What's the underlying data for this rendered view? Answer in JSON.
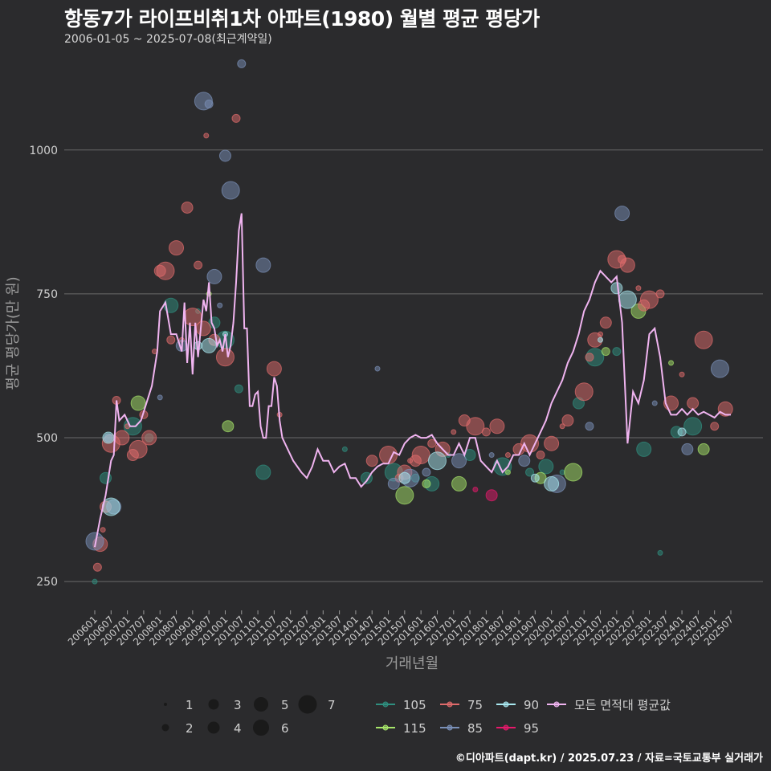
{
  "header": {
    "title": "항동7가 라이프비취1차 아파트(1980) 월별 평균 평당가",
    "subtitle": "2006-01-05 ~ 2025-07-08(최근계약일)"
  },
  "footer": {
    "credit": "©디아파트(dapt.kr) / 2025.07.23 / 자료=국토교통부 실거래가"
  },
  "colors": {
    "background": "#2b2b2d",
    "grid": "#6a6a6a",
    "line": "#f0b4f0",
    "s105": "#2f8f7f",
    "s115": "#a7e66a",
    "s75": "#e06b6b",
    "s85": "#7a90b8",
    "s90": "#a8e8f0",
    "s95": "#e6196b"
  },
  "chart_data": {
    "type": "scatter+line",
    "title": "항동7가 라이프비취1차 아파트(1980) 월별 평균 평당가",
    "xlabel": "거래년월",
    "ylabel": "평균 평당가(만 원)",
    "ylim": [
      200,
      1170
    ],
    "yticks": [
      250,
      500,
      750,
      1000
    ],
    "x_start": "2006-01",
    "x_end": "2025-07",
    "xtick_labels": [
      "200601",
      "200607",
      "200701",
      "200707",
      "200801",
      "200807",
      "200901",
      "200907",
      "201001",
      "201007",
      "201101",
      "201107",
      "201201",
      "201207",
      "201301",
      "201307",
      "201401",
      "201407",
      "201501",
      "201507",
      "201601",
      "201607",
      "201701",
      "201707",
      "201801",
      "201807",
      "201901",
      "201907",
      "202001",
      "202007",
      "202101",
      "202107",
      "202201",
      "202207",
      "202301",
      "202307",
      "202401",
      "202407",
      "202501",
      "202507"
    ],
    "average_line": {
      "name": "모든 면적대 평균값",
      "points": [
        [
          "2006-01",
          310
        ],
        [
          "2006-03",
          360
        ],
        [
          "2006-05",
          400
        ],
        [
          "2006-07",
          460
        ],
        [
          "2006-08",
          470
        ],
        [
          "2006-09",
          565
        ],
        [
          "2006-10",
          530
        ],
        [
          "2006-12",
          540
        ],
        [
          "2007-02",
          520
        ],
        [
          "2007-04",
          520
        ],
        [
          "2007-06",
          530
        ],
        [
          "2007-08",
          560
        ],
        [
          "2007-10",
          590
        ],
        [
          "2007-12",
          650
        ],
        [
          "2008-01",
          720
        ],
        [
          "2008-03",
          735
        ],
        [
          "2008-05",
          680
        ],
        [
          "2008-07",
          680
        ],
        [
          "2008-09",
          650
        ],
        [
          "2008-10",
          735
        ],
        [
          "2008-11",
          630
        ],
        [
          "2008-12",
          700
        ],
        [
          "2009-01",
          610
        ],
        [
          "2009-02",
          700
        ],
        [
          "2009-03",
          640
        ],
        [
          "2009-04",
          690
        ],
        [
          "2009-05",
          740
        ],
        [
          "2009-06",
          720
        ],
        [
          "2009-07",
          770
        ],
        [
          "2009-08",
          700
        ],
        [
          "2009-09",
          690
        ],
        [
          "2009-10",
          660
        ],
        [
          "2009-11",
          670
        ],
        [
          "2009-12",
          650
        ],
        [
          "2010-01",
          680
        ],
        [
          "2010-02",
          640
        ],
        [
          "2010-03",
          660
        ],
        [
          "2010-04",
          700
        ],
        [
          "2010-05",
          770
        ],
        [
          "2010-06",
          860
        ],
        [
          "2010-07",
          890
        ],
        [
          "2010-08",
          690
        ],
        [
          "2010-09",
          690
        ],
        [
          "2010-10",
          555
        ],
        [
          "2010-11",
          555
        ],
        [
          "2010-12",
          575
        ],
        [
          "2011-01",
          580
        ],
        [
          "2011-02",
          520
        ],
        [
          "2011-03",
          500
        ],
        [
          "2011-04",
          500
        ],
        [
          "2011-05",
          555
        ],
        [
          "2011-06",
          555
        ],
        [
          "2011-07",
          605
        ],
        [
          "2011-08",
          590
        ],
        [
          "2011-09",
          530
        ],
        [
          "2011-10",
          500
        ],
        [
          "2011-12",
          480
        ],
        [
          "2012-02",
          460
        ],
        [
          "2012-05",
          440
        ],
        [
          "2012-07",
          430
        ],
        [
          "2012-09",
          450
        ],
        [
          "2012-11",
          480
        ],
        [
          "2013-01",
          460
        ],
        [
          "2013-03",
          460
        ],
        [
          "2013-05",
          440
        ],
        [
          "2013-07",
          450
        ],
        [
          "2013-09",
          455
        ],
        [
          "2013-11",
          430
        ],
        [
          "2014-01",
          430
        ],
        [
          "2014-03",
          415
        ],
        [
          "2014-05",
          425
        ],
        [
          "2014-07",
          440
        ],
        [
          "2014-09",
          450
        ],
        [
          "2014-11",
          455
        ],
        [
          "2015-01",
          455
        ],
        [
          "2015-03",
          475
        ],
        [
          "2015-05",
          470
        ],
        [
          "2015-07",
          490
        ],
        [
          "2015-09",
          500
        ],
        [
          "2015-11",
          505
        ],
        [
          "2016-01",
          500
        ],
        [
          "2016-03",
          500
        ],
        [
          "2016-05",
          505
        ],
        [
          "2016-07",
          490
        ],
        [
          "2016-09",
          480
        ],
        [
          "2016-11",
          470
        ],
        [
          "2017-01",
          470
        ],
        [
          "2017-03",
          490
        ],
        [
          "2017-05",
          470
        ],
        [
          "2017-07",
          500
        ],
        [
          "2017-09",
          500
        ],
        [
          "2017-11",
          460
        ],
        [
          "2018-01",
          450
        ],
        [
          "2018-03",
          440
        ],
        [
          "2018-05",
          460
        ],
        [
          "2018-07",
          440
        ],
        [
          "2018-09",
          450
        ],
        [
          "2018-11",
          470
        ],
        [
          "2019-01",
          470
        ],
        [
          "2019-03",
          490
        ],
        [
          "2019-05",
          470
        ],
        [
          "2019-07",
          490
        ],
        [
          "2019-09",
          510
        ],
        [
          "2019-11",
          530
        ],
        [
          "2020-01",
          560
        ],
        [
          "2020-03",
          580
        ],
        [
          "2020-05",
          600
        ],
        [
          "2020-07",
          630
        ],
        [
          "2020-09",
          650
        ],
        [
          "2020-11",
          680
        ],
        [
          "2021-01",
          720
        ],
        [
          "2021-03",
          740
        ],
        [
          "2021-05",
          770
        ],
        [
          "2021-07",
          790
        ],
        [
          "2021-09",
          780
        ],
        [
          "2021-11",
          770
        ],
        [
          "2022-01",
          780
        ],
        [
          "2022-03",
          700
        ],
        [
          "2022-05",
          490
        ],
        [
          "2022-07",
          580
        ],
        [
          "2022-09",
          560
        ],
        [
          "2022-11",
          600
        ],
        [
          "2023-01",
          680
        ],
        [
          "2023-03",
          690
        ],
        [
          "2023-05",
          640
        ],
        [
          "2023-07",
          560
        ],
        [
          "2023-09",
          540
        ],
        [
          "2023-11",
          540
        ],
        [
          "2024-01",
          550
        ],
        [
          "2024-03",
          540
        ],
        [
          "2024-05",
          550
        ],
        [
          "2024-07",
          540
        ],
        [
          "2024-09",
          545
        ],
        [
          "2024-11",
          540
        ],
        [
          "2025-01",
          535
        ],
        [
          "2025-03",
          545
        ],
        [
          "2025-05",
          540
        ],
        [
          "2025-07",
          540
        ]
      ]
    },
    "series": [
      {
        "name": "105",
        "color": "#2f8f7f",
        "points": [
          [
            "2006-01",
            250
          ],
          [
            "2006-05",
            430
          ],
          [
            "2007-03",
            520
          ],
          [
            "2007-09",
            500
          ],
          [
            "2008-05",
            730
          ],
          [
            "2009-03",
            720
          ],
          [
            "2009-09",
            700
          ],
          [
            "2010-01",
            670
          ],
          [
            "2010-06",
            585
          ],
          [
            "2011-03",
            440
          ],
          [
            "2013-09",
            480
          ],
          [
            "2014-05",
            430
          ],
          [
            "2015-03",
            440
          ],
          [
            "2015-11",
            430
          ],
          [
            "2016-05",
            420
          ],
          [
            "2016-11",
            470
          ],
          [
            "2017-07",
            470
          ],
          [
            "2018-07",
            450
          ],
          [
            "2019-05",
            440
          ],
          [
            "2019-11",
            450
          ],
          [
            "2020-05",
            440
          ],
          [
            "2020-11",
            560
          ],
          [
            "2021-05",
            640
          ],
          [
            "2022-01",
            650
          ],
          [
            "2022-11",
            480
          ],
          [
            "2023-05",
            300
          ],
          [
            "2023-11",
            510
          ],
          [
            "2024-05",
            520
          ]
        ]
      },
      {
        "name": "115",
        "color": "#a7e66a",
        "points": [
          [
            "2007-05",
            560
          ],
          [
            "2009-07",
            750
          ],
          [
            "2010-02",
            520
          ],
          [
            "2015-07",
            400
          ],
          [
            "2016-03",
            420
          ],
          [
            "2017-03",
            420
          ],
          [
            "2018-09",
            440
          ],
          [
            "2019-09",
            430
          ],
          [
            "2020-09",
            440
          ],
          [
            "2021-09",
            650
          ],
          [
            "2022-09",
            720
          ],
          [
            "2023-09",
            630
          ],
          [
            "2024-09",
            480
          ]
        ]
      },
      {
        "name": "75",
        "color": "#e06b6b",
        "points": [
          [
            "2006-02",
            275
          ],
          [
            "2006-03",
            315
          ],
          [
            "2006-04",
            340
          ],
          [
            "2006-05",
            380
          ],
          [
            "2006-07",
            490
          ],
          [
            "2006-09",
            565
          ],
          [
            "2006-11",
            500
          ],
          [
            "2007-01",
            520
          ],
          [
            "2007-03",
            470
          ],
          [
            "2007-05",
            480
          ],
          [
            "2007-07",
            540
          ],
          [
            "2007-09",
            500
          ],
          [
            "2007-11",
            650
          ],
          [
            "2008-01",
            790
          ],
          [
            "2008-03",
            790
          ],
          [
            "2008-05",
            670
          ],
          [
            "2008-07",
            830
          ],
          [
            "2008-09",
            670
          ],
          [
            "2008-11",
            900
          ],
          [
            "2009-01",
            710
          ],
          [
            "2009-03",
            800
          ],
          [
            "2009-05",
            690
          ],
          [
            "2009-06",
            1025
          ],
          [
            "2009-09",
            670
          ],
          [
            "2010-01",
            640
          ],
          [
            "2010-05",
            1055
          ],
          [
            "2011-07",
            620
          ],
          [
            "2011-09",
            540
          ],
          [
            "2014-07",
            460
          ],
          [
            "2015-01",
            470
          ],
          [
            "2015-05",
            430
          ],
          [
            "2015-07",
            440
          ],
          [
            "2015-09",
            460
          ],
          [
            "2015-11",
            460
          ],
          [
            "2016-01",
            470
          ],
          [
            "2016-05",
            490
          ],
          [
            "2016-09",
            480
          ],
          [
            "2017-01",
            510
          ],
          [
            "2017-05",
            530
          ],
          [
            "2017-09",
            520
          ],
          [
            "2018-01",
            510
          ],
          [
            "2018-05",
            520
          ],
          [
            "2018-09",
            470
          ],
          [
            "2019-01",
            480
          ],
          [
            "2019-05",
            490
          ],
          [
            "2019-09",
            470
          ],
          [
            "2020-01",
            490
          ],
          [
            "2020-05",
            520
          ],
          [
            "2020-07",
            530
          ],
          [
            "2021-01",
            580
          ],
          [
            "2021-03",
            640
          ],
          [
            "2021-05",
            670
          ],
          [
            "2021-07",
            680
          ],
          [
            "2021-09",
            700
          ],
          [
            "2022-01",
            810
          ],
          [
            "2022-03",
            810
          ],
          [
            "2022-05",
            800
          ],
          [
            "2022-09",
            760
          ],
          [
            "2022-11",
            730
          ],
          [
            "2023-01",
            740
          ],
          [
            "2023-05",
            750
          ],
          [
            "2023-09",
            560
          ],
          [
            "2024-01",
            610
          ],
          [
            "2024-05",
            560
          ],
          [
            "2024-09",
            670
          ],
          [
            "2025-01",
            520
          ],
          [
            "2025-05",
            550
          ]
        ]
      },
      {
        "name": "85",
        "color": "#7a90b8",
        "points": [
          [
            "2006-01",
            320
          ],
          [
            "2006-06",
            500
          ],
          [
            "2006-08",
            380
          ],
          [
            "2008-01",
            570
          ],
          [
            "2008-09",
            660
          ],
          [
            "2009-05",
            1085
          ],
          [
            "2009-07",
            1080
          ],
          [
            "2009-09",
            780
          ],
          [
            "2009-11",
            730
          ],
          [
            "2010-01",
            990
          ],
          [
            "2010-03",
            930
          ],
          [
            "2010-07",
            1150
          ],
          [
            "2011-03",
            800
          ],
          [
            "2014-09",
            620
          ],
          [
            "2015-03",
            420
          ],
          [
            "2015-09",
            430
          ],
          [
            "2016-03",
            440
          ],
          [
            "2017-03",
            460
          ],
          [
            "2018-03",
            470
          ],
          [
            "2019-03",
            460
          ],
          [
            "2020-03",
            420
          ],
          [
            "2021-03",
            520
          ],
          [
            "2022-03",
            890
          ],
          [
            "2023-03",
            560
          ],
          [
            "2024-03",
            480
          ],
          [
            "2025-03",
            620
          ]
        ]
      },
      {
        "name": "90",
        "color": "#a8e8f0",
        "points": [
          [
            "2006-06",
            500
          ],
          [
            "2006-07",
            380
          ],
          [
            "2009-03",
            660
          ],
          [
            "2009-07",
            660
          ],
          [
            "2010-01",
            680
          ],
          [
            "2015-07",
            430
          ],
          [
            "2016-07",
            460
          ],
          [
            "2019-07",
            430
          ],
          [
            "2020-01",
            420
          ],
          [
            "2021-07",
            670
          ],
          [
            "2022-01",
            760
          ],
          [
            "2022-05",
            740
          ],
          [
            "2024-01",
            510
          ]
        ]
      },
      {
        "name": "95",
        "color": "#e6196b",
        "points": [
          [
            "2017-09",
            410
          ],
          [
            "2018-03",
            400
          ]
        ]
      }
    ],
    "size_legend": {
      "labels": [
        "1",
        "2",
        "3",
        "4",
        "5",
        "6",
        "7"
      ]
    },
    "color_legend": {
      "labels": [
        "105",
        "115",
        "75",
        "85",
        "90",
        "95",
        "모든 면적대 평균값"
      ]
    }
  }
}
